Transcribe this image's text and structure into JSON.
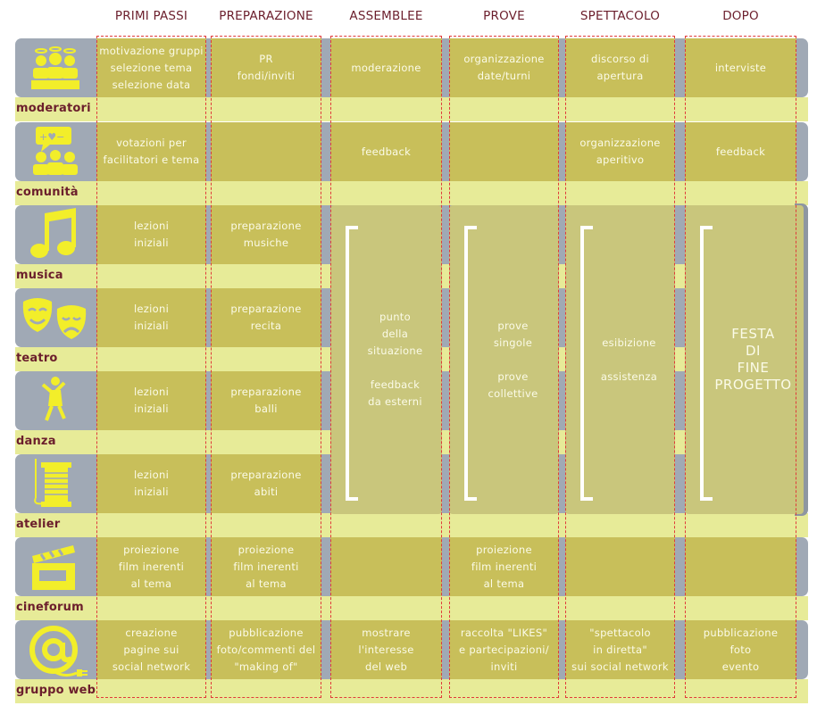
{
  "columns": [
    "PRIMI PASSI",
    "PREPARAZIONE",
    "ASSEMBLEE",
    "PROVE",
    "SPETTACOLO",
    "DOPO"
  ],
  "rows": [
    {
      "label": "moderatori",
      "icon": "moderators-group-icon"
    },
    {
      "label": "comunità",
      "icon": "community-speech-icon"
    },
    {
      "label": "musica",
      "icon": "music-note-icon"
    },
    {
      "label": "teatro",
      "icon": "theatre-masks-icon"
    },
    {
      "label": "danza",
      "icon": "dancer-icon"
    },
    {
      "label": "atelier",
      "icon": "thread-spool-needle-icon"
    },
    {
      "label": "cineforum",
      "icon": "clapperboard-icon"
    },
    {
      "label": "gruppo web",
      "icon": "at-sign-plug-icon"
    }
  ],
  "cells": {
    "moderatori": [
      "motivazione gruppi\nselezione tema\nselezione data",
      "PR\nfondi/inviti",
      "moderazione",
      "organizzazione\ndate/turni",
      "discorso di\napertura",
      "interviste"
    ],
    "comunita": [
      "votazioni per\nfacilitatori e tema",
      "",
      "feedback",
      "",
      "organizzazione\naperitivo",
      "feedback"
    ],
    "musica": [
      "lezioni\niniziali",
      "preparazione\nmusiche"
    ],
    "teatro": [
      "lezioni\niniziali",
      "preparazione\nrecita"
    ],
    "danza": [
      "lezioni\niniziali",
      "preparazione\nballi"
    ],
    "atelier": [
      "lezioni\niniziali",
      "preparazione\nabiti"
    ],
    "cineforum": [
      "proiezione\nfilm inerenti\nal tema",
      "proiezione\nfilm inerenti\nal tema",
      "",
      "proiezione\nfilm inerenti\nal tema",
      "",
      ""
    ],
    "gruppo_web": [
      "creazione\npagine sui\nsocial network",
      "pubblicazione\nfoto/commenti del\n\"making of\"",
      "mostrare\nl'interesse\ndel web",
      "raccolta \"LIKES\"\ne partecipazioni/\ninviti",
      "\"spettacolo\nin diretta\"\nsui social network",
      "pubblicazione\nfoto\nevento"
    ]
  },
  "merged": {
    "assemblee": "punto\ndella\nsituazione\n\nfeedback\nda esterni",
    "prove": "prove\nsingole\n\nprove\ncollettive",
    "spettacolo": "esibizione\n\nassistenza",
    "dopo": "FESTA\nDI\nFINE\nPROGETTO"
  },
  "colors": {
    "heading": "#6b1e2c",
    "band": "#a0a9b5",
    "gap": "#e7eb98",
    "cell": "#c8bf5a",
    "icon": "#f2ee2a",
    "dashed": "#e03a3a"
  }
}
